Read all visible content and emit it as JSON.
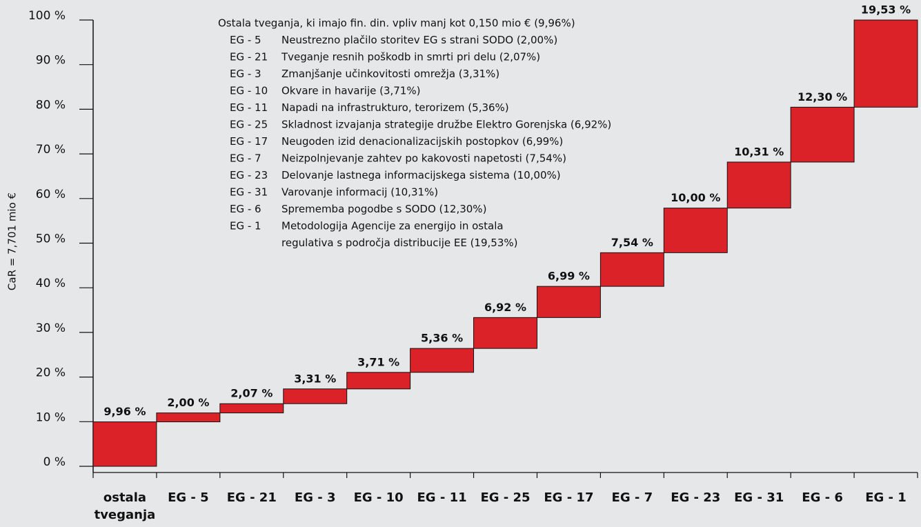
{
  "chart_data": {
    "type": "waterfall",
    "y_label": "CaR = 7,701 mio €",
    "categories": [
      "ostala tveganja",
      "EG - 5",
      "EG - 21",
      "EG - 3",
      "EG - 10",
      "EG - 11",
      "EG - 25",
      "EG - 17",
      "EG - 7",
      "EG - 23",
      "EG - 31",
      "EG - 6",
      "EG - 1"
    ],
    "values": [
      9.96,
      2.0,
      2.07,
      3.31,
      3.71,
      5.36,
      6.92,
      6.99,
      7.54,
      10.0,
      10.31,
      12.3,
      19.53
    ],
    "value_labels": [
      "9,96 %",
      "2,00 %",
      "2,07 %",
      "3,31 %",
      "3,71 %",
      "5,36 %",
      "6,92 %",
      "6,99 %",
      "7,54 %",
      "10,00 %",
      "10,31 %",
      "12,30 %",
      "19,53 %"
    ],
    "color": "#dc2229",
    "ylim": [
      0,
      100
    ],
    "yticks": [
      {
        "value": 0,
        "label": "0 %"
      },
      {
        "value": 10,
        "label": "10 %"
      },
      {
        "value": 20,
        "label": "20 %"
      },
      {
        "value": 30,
        "label": "30 %"
      },
      {
        "value": 40,
        "label": "40 %"
      },
      {
        "value": 50,
        "label": "50 %"
      },
      {
        "value": 60,
        "label": "60 %"
      },
      {
        "value": 70,
        "label": "70 %"
      },
      {
        "value": 80,
        "label": "80 %"
      },
      {
        "value": 90,
        "label": "90 %"
      },
      {
        "value": 100,
        "label": "100 %"
      }
    ],
    "legend": {
      "title": "Ostala tveganja, ki imajo fin. din. vpliv manj kot 0,150 mio € (9,96%)",
      "items": [
        {
          "code": "EG - 5",
          "lines": [
            "Neustrezno plačilo storitev EG s strani SODO (2,00%)"
          ]
        },
        {
          "code": "EG - 21",
          "lines": [
            "Tveganje resnih poškodb in smrti pri delu (2,07%)"
          ]
        },
        {
          "code": "EG - 3",
          "lines": [
            "Zmanjšanje učinkovitosti omrežja (3,31%)"
          ]
        },
        {
          "code": "EG - 10",
          "lines": [
            "Okvare in havarije (3,71%)"
          ]
        },
        {
          "code": "EG - 11",
          "lines": [
            "Napadi na infrastrukturo, terorizem (5,36%)"
          ]
        },
        {
          "code": "EG - 25",
          "lines": [
            "Skladnost izvajanja strategije družbe Elektro Gorenjska (6,92%)"
          ]
        },
        {
          "code": "EG - 17",
          "lines": [
            "Neugoden izid denacionalizacijskih postopkov (6,99%)"
          ]
        },
        {
          "code": "EG - 7",
          "lines": [
            "Neizpolnjevanje zahtev po kakovosti napetosti (7,54%)"
          ]
        },
        {
          "code": "EG - 23",
          "lines": [
            "Delovanje lastnega informacijskega sistema (10,00%)"
          ]
        },
        {
          "code": "EG - 31",
          "lines": [
            "Varovanje informacij (10,31%)"
          ]
        },
        {
          "code": "EG - 6",
          "lines": [
            "Sprememba pogodbe s SODO (12,30%)"
          ]
        },
        {
          "code": "EG - 1",
          "lines": [
            "Metodologija Agencije za energijo in ostala",
            "regulativa s področja distribucije EE (19,53%)"
          ]
        }
      ]
    }
  }
}
